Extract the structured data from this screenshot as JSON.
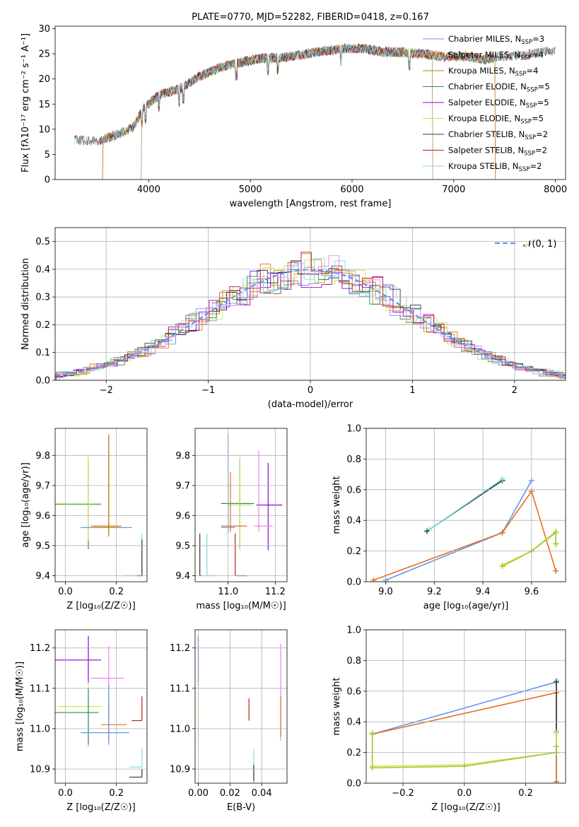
{
  "figure": {
    "background": "#ffffff",
    "grid_color": "#b0b0b0"
  },
  "chart_data": [
    {
      "id": "spectrum",
      "type": "line",
      "title": "PLATE=0770, MJD=52282, FIBERID=0418, z=0.167",
      "xlabel": "wavelength [Angstrom, rest frame]",
      "ylabel": "Flux [fλ10⁻¹⁷ erg cm⁻² s⁻¹ A⁻¹]",
      "xlim": [
        3080,
        8100
      ],
      "ylim": [
        0,
        30.5
      ],
      "xticks": [
        4000,
        5000,
        6000,
        7000,
        8000
      ],
      "yticks": [
        0,
        5,
        10,
        15,
        20,
        25,
        30
      ],
      "grid": false,
      "legend_loc": "upper right",
      "continuum": {
        "x": [
          3270,
          3500,
          3700,
          3850,
          3950,
          4100,
          4300,
          4500,
          4700,
          4900,
          5100,
          5300,
          5500,
          5700,
          5900,
          6100,
          6300,
          6500,
          6700,
          6900,
          7100,
          7300,
          7500,
          7700,
          7900
        ],
        "y": [
          7.9,
          7.6,
          9.0,
          10.4,
          14.2,
          16.8,
          18.0,
          20.5,
          22.3,
          23.3,
          24.1,
          24.2,
          24.8,
          25.5,
          26.0,
          26.1,
          25.4,
          25.3,
          25.0,
          24.4,
          24.5,
          23.9,
          24.5,
          24.8,
          25.5
        ]
      },
      "series": [
        {
          "name": "Chabrier MILES, N_SSP=3",
          "color": "#6495ed",
          "x_start": 3540,
          "x_end": 7420
        },
        {
          "name": "Salpeter MILES, N_SSP=4",
          "color": "#e2701f",
          "x_start": 3540,
          "x_end": 7420
        },
        {
          "name": "Kroupa MILES, N_SSP=4",
          "color": "#b8860b",
          "x_start": 3540,
          "x_end": 7420
        },
        {
          "name": "Chabrier ELODIE, N_SSP=5",
          "color": "#2e8b57",
          "x_start": 3920,
          "x_end": 6800
        },
        {
          "name": "Salpeter ELODIE, N_SSP=5",
          "color": "#9400d3",
          "x_start": 3920,
          "x_end": 6800
        },
        {
          "name": "Kroupa ELODIE, N_SSP=5",
          "color": "#d4e157",
          "x_start": 3920,
          "x_end": 6800
        },
        {
          "name": "Chabrier STELIB, N_SSP=2",
          "color": "#333333",
          "x_start": 3270,
          "x_end": 8000
        },
        {
          "name": "Salpeter STELIB, N_SSP=2",
          "color": "#b22222",
          "x_start": 3270,
          "x_end": 8000
        },
        {
          "name": "Kroupa STELIB, N_SSP=2",
          "color": "#7fdfe8",
          "x_start": 3270,
          "x_end": 8000
        }
      ]
    },
    {
      "id": "residuals",
      "type": "line",
      "xlabel": "(data-model)/error",
      "ylabel": "Normed distribution",
      "xlim": [
        -2.5,
        2.5
      ],
      "ylim": [
        0,
        0.55
      ],
      "xticks": [
        -2,
        -1,
        0,
        1,
        2
      ],
      "yticks": [
        0.0,
        0.1,
        0.2,
        0.3,
        0.4,
        0.5
      ],
      "grid": true,
      "legend_loc": "upper right",
      "bin_width": 0.1,
      "reference": {
        "name": "𝒩(0, 1)",
        "color": "#6495ed"
      },
      "histogram_colors": [
        "#6495ed",
        "#e2701f",
        "#b8860b",
        "#2e8b57",
        "#9400d3",
        "#d4e157",
        "#333333",
        "#b22222",
        "#7fdfe8",
        "#ee82ee"
      ]
    },
    {
      "id": "Z_vs_age",
      "type": "scatter",
      "xlabel": "Z [log₁₀(Z/Z☉)]",
      "ylabel": "age  [log₁₀(age/yr)]",
      "xlim": [
        -0.04,
        0.32
      ],
      "ylim": [
        9.38,
        9.89
      ],
      "xticks": [
        0.0,
        0.2
      ],
      "yticks": [
        9.4,
        9.5,
        9.6,
        9.7,
        9.8
      ],
      "grid": true,
      "points": [
        {
          "x": 0.09,
          "y": 9.638,
          "xerr": [
            0.13,
            0.05
          ],
          "yerr": [
            0.15,
            0.15
          ],
          "color": "#2e8b57"
        },
        {
          "x": 0.09,
          "y": 9.636,
          "xerr": [
            0.12,
            0.04
          ],
          "yerr": [
            0.12,
            0.16
          ],
          "color": "#d4e157"
        },
        {
          "x": 0.17,
          "y": 9.56,
          "xerr": [
            0.11,
            0.09
          ],
          "yerr": [
            0.02,
            0.31
          ],
          "color": "#6495ed"
        },
        {
          "x": 0.17,
          "y": 9.565,
          "xerr": [
            0.07,
            0.05
          ],
          "yerr": [
            0.02,
            0.3
          ],
          "color": "#e2701f"
        },
        {
          "x": 0.17,
          "y": 9.56,
          "xerr": [
            0.06,
            0.04
          ],
          "yerr": [
            0.03,
            0.25
          ],
          "color": "#b8860b"
        },
        {
          "x": 0.3,
          "y": 9.4,
          "xerr": [
            0.07,
            0.0
          ],
          "yerr": [
            0.0,
            0.14
          ],
          "color": "#7fdfe8"
        },
        {
          "x": 0.3,
          "y": 9.4,
          "xerr": [
            0.02,
            0.0
          ],
          "yerr": [
            0.0,
            0.12
          ],
          "color": "#333333"
        }
      ]
    },
    {
      "id": "mass_vs_age",
      "type": "scatter",
      "xlabel": "mass [log₁₀(M/M☉)]",
      "ylabel": "",
      "xlim": [
        10.86,
        11.25
      ],
      "ylim": [
        9.38,
        9.89
      ],
      "xticks": [
        11.0,
        11.2
      ],
      "yticks": [
        9.4,
        9.5,
        9.6,
        9.7,
        9.8
      ],
      "grid": true,
      "points": [
        {
          "x": 11.05,
          "y": 9.64,
          "xerr": [
            0.08,
            0.06
          ],
          "yerr": [
            0.15,
            0.15
          ],
          "color": "#2e8b57"
        },
        {
          "x": 11.05,
          "y": 9.635,
          "xerr": [
            0.05,
            0.05
          ],
          "yerr": [
            0.15,
            0.16
          ],
          "color": "#d4e157"
        },
        {
          "x": 11.17,
          "y": 9.635,
          "xerr": [
            0.05,
            0.06
          ],
          "yerr": [
            0.15,
            0.14
          ],
          "color": "#9400d3"
        },
        {
          "x": 11.13,
          "y": 9.565,
          "xerr": [
            0.02,
            0.06
          ],
          "yerr": [
            0.02,
            0.25
          ],
          "color": "#ee82ee"
        },
        {
          "x": 11.0,
          "y": 9.56,
          "xerr": [
            0.03,
            0.03
          ],
          "yerr": [
            0.02,
            0.31
          ],
          "color": "#6495ed"
        },
        {
          "x": 11.01,
          "y": 9.565,
          "xerr": [
            0.04,
            0.07
          ],
          "yerr": [
            0.02,
            0.18
          ],
          "color": "#e2701f"
        },
        {
          "x": 11.03,
          "y": 9.4,
          "xerr": [
            0.0,
            0.05
          ],
          "yerr": [
            0.0,
            0.14
          ],
          "color": "#b22222"
        },
        {
          "x": 10.88,
          "y": 9.4,
          "xerr": [
            0.0,
            0.01
          ],
          "yerr": [
            0.0,
            0.14
          ],
          "color": "#333333"
        },
        {
          "x": 10.91,
          "y": 9.4,
          "xerr": [
            0.0,
            0.03
          ],
          "yerr": [
            0.0,
            0.14
          ],
          "color": "#7fdfe8"
        }
      ]
    },
    {
      "id": "age_vs_weight",
      "type": "line",
      "xlabel": "age  [log₁₀(age/yr)]",
      "ylabel": "mass weight",
      "xlim": [
        8.92,
        9.74
      ],
      "ylim": [
        0,
        1.0
      ],
      "xticks": [
        9.0,
        9.2,
        9.4,
        9.6
      ],
      "yticks": [
        0.0,
        0.2,
        0.4,
        0.6,
        0.8,
        1.0
      ],
      "grid": true,
      "series": [
        {
          "color": "#6495ed",
          "x": [
            9.0,
            9.48,
            9.6
          ],
          "y": [
            0.01,
            0.32,
            0.66
          ]
        },
        {
          "color": "#e2701f",
          "x": [
            8.95,
            9.48,
            9.6,
            9.7
          ],
          "y": [
            0.01,
            0.32,
            0.59,
            0.07
          ]
        },
        {
          "color": "#333333",
          "x": [
            9.17,
            9.48
          ],
          "y": [
            0.33,
            0.66
          ]
        },
        {
          "color": "#7fdfe8",
          "x": [
            9.18,
            9.48
          ],
          "y": [
            0.34,
            0.67
          ]
        },
        {
          "color": "#d4e157",
          "x": [
            9.48,
            9.6,
            9.7,
            9.7
          ],
          "y": [
            0.11,
            0.2,
            0.33,
            0.24
          ]
        },
        {
          "color": "#9acd32",
          "x": [
            9.48,
            9.6,
            9.7,
            9.7
          ],
          "y": [
            0.1,
            0.2,
            0.32,
            0.25
          ]
        }
      ]
    },
    {
      "id": "Z_vs_mass",
      "type": "scatter",
      "xlabel": "Z [log₁₀(Z/Z☉)]",
      "ylabel": "mass [log₁₀(M/M☉)]",
      "xlim": [
        -0.04,
        0.32
      ],
      "ylim": [
        10.865,
        11.245
      ],
      "xticks": [
        0.0,
        0.2
      ],
      "yticks": [
        10.9,
        11.0,
        11.1,
        11.2
      ],
      "grid": true,
      "points": [
        {
          "x": 0.09,
          "y": 11.17,
          "xerr": [
            0.13,
            0.05
          ],
          "yerr": [
            0.06,
            0.06
          ],
          "color": "#9400d3"
        },
        {
          "x": 0.17,
          "y": 11.125,
          "xerr": [
            0.07,
            0.06
          ],
          "yerr": [
            0.15,
            0.08
          ],
          "color": "#ee82ee"
        },
        {
          "x": 0.09,
          "y": 11.055,
          "xerr": [
            0.12,
            0.05
          ],
          "yerr": [
            0.1,
            0.06
          ],
          "color": "#d4e157"
        },
        {
          "x": 0.09,
          "y": 11.04,
          "xerr": [
            0.13,
            0.04
          ],
          "yerr": [
            0.08,
            0.06
          ],
          "color": "#2e8b57"
        },
        {
          "x": 0.17,
          "y": 11.01,
          "xerr": [
            0.03,
            0.07
          ],
          "yerr": [
            0.04,
            0.05
          ],
          "color": "#e2701f"
        },
        {
          "x": 0.17,
          "y": 10.99,
          "xerr": [
            0.11,
            0.08
          ],
          "yerr": [
            0.03,
            0.12
          ],
          "color": "#6495ed"
        },
        {
          "x": 0.3,
          "y": 11.02,
          "xerr": [
            0.04,
            0.0
          ],
          "yerr": [
            0.0,
            0.06
          ],
          "color": "#b22222"
        },
        {
          "x": 0.3,
          "y": 10.905,
          "xerr": [
            0.05,
            0.0
          ],
          "yerr": [
            0.0,
            0.045
          ],
          "color": "#7fdfe8"
        },
        {
          "x": 0.3,
          "y": 10.88,
          "xerr": [
            0.05,
            0.0
          ],
          "yerr": [
            0.0,
            0.02
          ],
          "color": "#333333"
        }
      ]
    },
    {
      "id": "EBV_vs_mass",
      "type": "scatter",
      "xlabel": "E(B-V)",
      "ylabel": "",
      "xlim": [
        -0.002,
        0.056
      ],
      "ylim": [
        10.865,
        11.245
      ],
      "xticks": [
        0.0,
        0.02,
        0.04
      ],
      "yticks": [
        10.9,
        11.0,
        11.1,
        11.2
      ],
      "grid": true,
      "points": [
        {
          "x": 0.0,
          "y": 11.17,
          "xerr": [
            0,
            0
          ],
          "yerr": [
            0.06,
            0.06
          ],
          "color": "#9400d3"
        },
        {
          "x": 0.0,
          "y": 11.055,
          "xerr": [
            0,
            0
          ],
          "yerr": [
            0.1,
            0.06
          ],
          "color": "#d4e157"
        },
        {
          "x": 0.032,
          "y": 11.05,
          "xerr": [
            0,
            0
          ],
          "yerr": [
            0.03,
            0.025
          ],
          "color": "#b22222"
        },
        {
          "x": 0.052,
          "y": 11.12,
          "xerr": [
            0,
            0
          ],
          "yerr": [
            0.15,
            0.09
          ],
          "color": "#ee82ee"
        },
        {
          "x": 0.052,
          "y": 11.02,
          "xerr": [
            0,
            0
          ],
          "yerr": [
            0.04,
            0.06
          ],
          "color": "#e2701f"
        },
        {
          "x": 0.035,
          "y": 10.905,
          "xerr": [
            0,
            0
          ],
          "yerr": [
            0.045,
            0.045
          ],
          "color": "#7fdfe8"
        },
        {
          "x": 0.035,
          "y": 10.89,
          "xerr": [
            0,
            0
          ],
          "yerr": [
            0.02,
            0.02
          ],
          "color": "#333333"
        }
      ]
    },
    {
      "id": "Z_vs_weight",
      "type": "line",
      "xlabel": "Z [log₁₀(Z/Z☉)]",
      "ylabel": "mass weight",
      "xlim": [
        -0.32,
        0.33
      ],
      "ylim": [
        0,
        1.0
      ],
      "xticks": [
        -0.2,
        0.0,
        0.2
      ],
      "yticks": [
        0.0,
        0.2,
        0.4,
        0.6,
        0.8,
        1.0
      ],
      "grid": true,
      "series": [
        {
          "color": "#6495ed",
          "x": [
            -0.3,
            0.3,
            0.3
          ],
          "y": [
            0.32,
            0.66,
            0.01
          ]
        },
        {
          "color": "#e2701f",
          "x": [
            -0.3,
            0.3,
            0.3
          ],
          "y": [
            0.32,
            0.59,
            0.01
          ]
        },
        {
          "color": "#7fdfe8",
          "x": [
            0.3,
            0.3
          ],
          "y": [
            0.34,
            0.67
          ]
        },
        {
          "color": "#333333",
          "x": [
            0.3,
            0.3
          ],
          "y": [
            0.33,
            0.66
          ]
        },
        {
          "color": "#d4e157",
          "x": [
            -0.3,
            -0.3,
            0.0,
            0.3,
            0.3
          ],
          "y": [
            0.33,
            0.11,
            0.12,
            0.2,
            0.33
          ]
        },
        {
          "color": "#9acd32",
          "x": [
            -0.3,
            -0.3,
            0.0,
            0.3,
            0.3
          ],
          "y": [
            0.32,
            0.1,
            0.11,
            0.2,
            0.24
          ]
        }
      ]
    }
  ]
}
